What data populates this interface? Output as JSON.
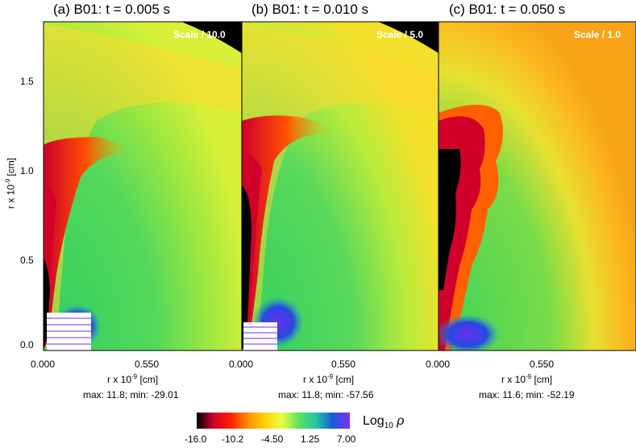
{
  "panels": [
    {
      "title": "(a)  B01: t = 0.005 s",
      "scale": "Scale / 10.0",
      "stats": "max:  11.8; min: -29.01",
      "xlabel": "r x 10",
      "xlabel_exp": "-9",
      "xlabel_unit": " [cm]",
      "x_ticks": [
        "0.000",
        "0.550"
      ]
    },
    {
      "title": "(b)  B01: t = 0.010 s",
      "scale": "Scale / 5.0",
      "stats": "max:  11.8; min: -57.56",
      "xlabel": "r x 10",
      "xlabel_exp": "-9",
      "xlabel_unit": " [cm]",
      "x_ticks": [
        "0.000",
        "0.550"
      ]
    },
    {
      "title": "(c)  B01: t = 0.050 s",
      "scale": "Scale / 1.0",
      "stats": "max:  11.6; min: -52.19",
      "xlabel": "r x 10",
      "xlabel_exp": "-9",
      "xlabel_unit": " [cm]",
      "x_ticks": [
        "0.000",
        "0.550"
      ]
    }
  ],
  "y_axis": {
    "label": "r x 10",
    "label_exp": "-9",
    "label_unit": " [cm]",
    "ticks": [
      "0.0",
      "0.5",
      "1.0",
      "1.5"
    ]
  },
  "colorbar": {
    "label": "Log",
    "label_sub": "10",
    "label_symbol": "ρ",
    "ticks": [
      "-16.0",
      "-10.2",
      "-4.50",
      "1.25",
      "7.00"
    ],
    "colors": [
      "#000000",
      "#d0002a",
      "#ff2000",
      "#ff8c00",
      "#ffd200",
      "#e8ff40",
      "#60e060",
      "#20c8a0",
      "#1a5ad8",
      "#8a2bf0"
    ]
  },
  "chart_data": {
    "type": "heatmap",
    "variable": "Log10 rho",
    "x_ticks": [
      0.0,
      0.55
    ],
    "y_ticks": [
      0.0,
      0.5,
      1.0,
      1.5
    ],
    "xlim": [
      0.0,
      0.98
    ],
    "ylim": [
      0.0,
      1.83
    ],
    "colorbar_range": [
      -16.0,
      7.0
    ],
    "colorbar_ticks": [
      -16.0,
      -10.2,
      -4.5,
      1.25,
      7.0
    ],
    "panels": [
      {
        "label": "(a)",
        "model": "B01",
        "t": 0.005,
        "scale": 10.0,
        "max": 11.8,
        "min": -29.01
      },
      {
        "label": "(b)",
        "model": "B01",
        "t": 0.01,
        "scale": 5.0,
        "max": 11.8,
        "min": -57.56
      },
      {
        "label": "(c)",
        "model": "B01",
        "t": 0.05,
        "scale": 1.0,
        "max": 11.6,
        "min": -52.19
      }
    ]
  }
}
